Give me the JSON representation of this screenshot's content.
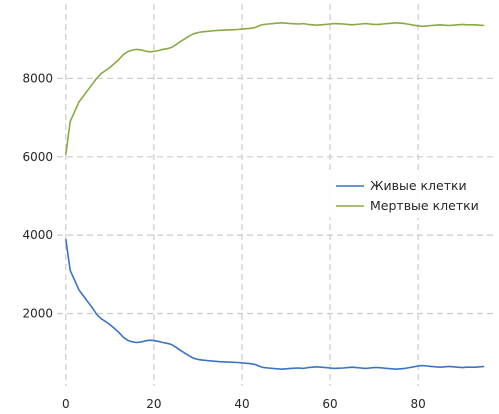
{
  "chart_data": {
    "type": "line",
    "title": "",
    "xlabel": "",
    "ylabel": "",
    "xlim": [
      -2,
      97
    ],
    "ylim": [
      150,
      9900
    ],
    "grid": true,
    "legend_position": "center-right",
    "x_ticks": [
      0,
      20,
      40,
      60,
      80
    ],
    "y_ticks": [
      2000,
      4000,
      6000,
      8000
    ],
    "x_tick_labels": [
      "0",
      "20",
      "40",
      "60",
      "80"
    ],
    "y_tick_labels": [
      "2000",
      "4000",
      "6000",
      "8000"
    ],
    "series": [
      {
        "name": "Живые клетки",
        "color": "#3a74c4",
        "x": [
          0,
          1,
          2,
          3,
          4,
          5,
          6,
          7,
          8,
          9,
          10,
          11,
          12,
          13,
          14,
          15,
          16,
          17,
          18,
          19,
          20,
          21,
          22,
          23,
          24,
          25,
          26,
          27,
          28,
          29,
          30,
          31,
          32,
          33,
          34,
          35,
          36,
          37,
          38,
          39,
          40,
          41,
          42,
          43,
          44,
          45,
          46,
          47,
          48,
          49,
          50,
          51,
          52,
          53,
          54,
          55,
          56,
          57,
          58,
          59,
          60,
          61,
          62,
          63,
          64,
          65,
          66,
          67,
          68,
          69,
          70,
          71,
          72,
          73,
          74,
          75,
          76,
          77,
          78,
          79,
          80,
          81,
          82,
          83,
          84,
          85,
          86,
          87,
          88,
          89,
          90,
          91,
          92,
          93,
          94,
          95
        ],
        "y": [
          3900,
          3100,
          2850,
          2600,
          2450,
          2300,
          2150,
          1980,
          1870,
          1800,
          1720,
          1620,
          1520,
          1400,
          1320,
          1280,
          1260,
          1270,
          1300,
          1320,
          1310,
          1290,
          1260,
          1240,
          1210,
          1140,
          1060,
          990,
          920,
          860,
          830,
          810,
          800,
          790,
          780,
          770,
          765,
          760,
          755,
          750,
          740,
          730,
          720,
          700,
          650,
          620,
          610,
          600,
          590,
          580,
          590,
          600,
          605,
          610,
          600,
          620,
          630,
          640,
          630,
          620,
          610,
          600,
          605,
          610,
          620,
          630,
          620,
          610,
          600,
          610,
          620,
          620,
          610,
          600,
          590,
          580,
          590,
          600,
          620,
          640,
          660,
          670,
          660,
          650,
          640,
          630,
          640,
          650,
          640,
          630,
          620,
          630,
          630,
          630,
          640,
          650
        ]
      },
      {
        "name": "Мертвые клетки",
        "color": "#88aa44",
        "x": [
          0,
          1,
          2,
          3,
          4,
          5,
          6,
          7,
          8,
          9,
          10,
          11,
          12,
          13,
          14,
          15,
          16,
          17,
          18,
          19,
          20,
          21,
          22,
          23,
          24,
          25,
          26,
          27,
          28,
          29,
          30,
          31,
          32,
          33,
          34,
          35,
          36,
          37,
          38,
          39,
          40,
          41,
          42,
          43,
          44,
          45,
          46,
          47,
          48,
          49,
          50,
          51,
          52,
          53,
          54,
          55,
          56,
          57,
          58,
          59,
          60,
          61,
          62,
          63,
          64,
          65,
          66,
          67,
          68,
          69,
          70,
          71,
          72,
          73,
          74,
          75,
          76,
          77,
          78,
          79,
          80,
          81,
          82,
          83,
          84,
          85,
          86,
          87,
          88,
          89,
          90,
          91,
          92,
          93,
          94,
          95
        ],
        "y": [
          6050,
          6900,
          7150,
          7400,
          7550,
          7700,
          7850,
          8000,
          8120,
          8200,
          8280,
          8380,
          8480,
          8600,
          8680,
          8720,
          8740,
          8730,
          8700,
          8680,
          8690,
          8710,
          8740,
          8760,
          8790,
          8860,
          8940,
          9010,
          9080,
          9140,
          9170,
          9190,
          9200,
          9210,
          9220,
          9230,
          9235,
          9240,
          9245,
          9250,
          9260,
          9270,
          9280,
          9300,
          9350,
          9380,
          9390,
          9400,
          9410,
          9420,
          9410,
          9400,
          9395,
          9390,
          9400,
          9380,
          9370,
          9360,
          9370,
          9380,
          9390,
          9400,
          9395,
          9390,
          9380,
          9370,
          9380,
          9390,
          9400,
          9390,
          9380,
          9380,
          9390,
          9400,
          9410,
          9420,
          9410,
          9400,
          9380,
          9360,
          9340,
          9330,
          9340,
          9350,
          9360,
          9370,
          9360,
          9350,
          9360,
          9370,
          9380,
          9370,
          9370,
          9370,
          9360,
          9350
        ]
      }
    ]
  }
}
